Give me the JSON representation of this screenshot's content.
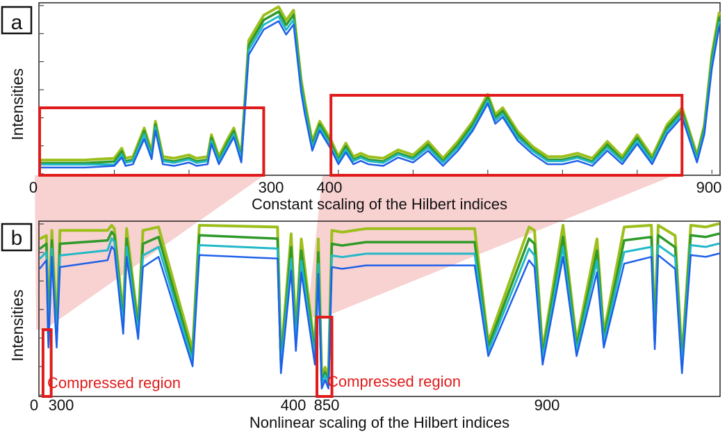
{
  "panels": [
    {
      "letter": "a",
      "ylabel": "Intensities",
      "xlabel": "Constant scaling of the Hilbert indices",
      "tick_labels": [
        "0",
        "300",
        "400",
        "900"
      ],
      "annotations": []
    },
    {
      "letter": "b",
      "ylabel": "Intensities",
      "xlabel": "Nonlinear scaling of the Hilbert indices",
      "tick_labels": [
        "0",
        "300",
        "400",
        "850",
        "900"
      ],
      "annotations": [
        "Compressed region",
        "Compressed region"
      ]
    }
  ],
  "colors": {
    "series": [
      "#9cbf1c",
      "#2f9a2a",
      "#22b8c8",
      "#1e5fe8"
    ],
    "highlight": "#e01b1b",
    "projection": "#f7c9c9",
    "frame": "#222222"
  },
  "chart_data": [
    {
      "type": "line",
      "title": "",
      "xlabel": "Constant scaling of the Hilbert indices",
      "ylabel": "Intensities",
      "xlim": [
        0,
        910
      ],
      "ylim": [
        0,
        1
      ],
      "grid": false,
      "series_count": 4,
      "highlight_ranges": [
        [
          0,
          300
        ],
        [
          390,
          860
        ]
      ],
      "x": [
        0,
        60,
        100,
        110,
        115,
        125,
        140,
        150,
        155,
        165,
        180,
        190,
        200,
        210,
        225,
        230,
        240,
        250,
        260,
        270,
        280,
        300,
        320,
        330,
        340,
        350,
        355,
        365,
        375,
        390,
        400,
        410,
        420,
        430,
        440,
        460,
        480,
        500,
        520,
        540,
        560,
        580,
        600,
        610,
        620,
        640,
        660,
        680,
        700,
        720,
        740,
        760,
        780,
        800,
        820,
        840,
        860,
        880,
        890,
        900,
        910
      ],
      "series": [
        {
          "values": [
            0.07,
            0.07,
            0.08,
            0.14,
            0.08,
            0.09,
            0.26,
            0.12,
            0.3,
            0.09,
            0.08,
            0.09,
            0.1,
            0.08,
            0.09,
            0.22,
            0.09,
            0.18,
            0.26,
            0.1,
            0.78,
            0.93,
            0.98,
            0.9,
            0.96,
            0.55,
            0.42,
            0.18,
            0.3,
            0.19,
            0.09,
            0.17,
            0.09,
            0.11,
            0.09,
            0.08,
            0.13,
            0.1,
            0.18,
            0.08,
            0.18,
            0.3,
            0.46,
            0.34,
            0.38,
            0.24,
            0.15,
            0.09,
            0.09,
            0.11,
            0.08,
            0.18,
            0.09,
            0.22,
            0.09,
            0.28,
            0.38,
            0.1,
            0.28,
            0.7,
            0.95
          ]
        },
        {
          "values": [
            0.06,
            0.06,
            0.07,
            0.13,
            0.07,
            0.08,
            0.25,
            0.11,
            0.29,
            0.08,
            0.07,
            0.08,
            0.09,
            0.07,
            0.08,
            0.21,
            0.08,
            0.17,
            0.25,
            0.09,
            0.76,
            0.91,
            0.96,
            0.88,
            0.94,
            0.53,
            0.4,
            0.17,
            0.29,
            0.18,
            0.08,
            0.16,
            0.08,
            0.1,
            0.08,
            0.07,
            0.12,
            0.09,
            0.17,
            0.07,
            0.17,
            0.29,
            0.45,
            0.33,
            0.37,
            0.23,
            0.14,
            0.08,
            0.08,
            0.1,
            0.07,
            0.17,
            0.08,
            0.21,
            0.08,
            0.27,
            0.37,
            0.09,
            0.27,
            0.68,
            0.93
          ]
        },
        {
          "values": [
            0.06,
            0.06,
            0.06,
            0.12,
            0.07,
            0.08,
            0.24,
            0.11,
            0.28,
            0.08,
            0.07,
            0.08,
            0.09,
            0.07,
            0.08,
            0.2,
            0.08,
            0.16,
            0.24,
            0.09,
            0.74,
            0.89,
            0.94,
            0.86,
            0.92,
            0.52,
            0.39,
            0.16,
            0.28,
            0.17,
            0.08,
            0.15,
            0.08,
            0.1,
            0.08,
            0.07,
            0.12,
            0.09,
            0.16,
            0.07,
            0.16,
            0.28,
            0.44,
            0.32,
            0.36,
            0.22,
            0.14,
            0.08,
            0.08,
            0.1,
            0.07,
            0.16,
            0.08,
            0.2,
            0.08,
            0.26,
            0.36,
            0.09,
            0.26,
            0.66,
            0.91
          ]
        },
        {
          "values": [
            0.05,
            0.05,
            0.06,
            0.11,
            0.06,
            0.07,
            0.22,
            0.1,
            0.27,
            0.07,
            0.06,
            0.07,
            0.08,
            0.06,
            0.07,
            0.19,
            0.07,
            0.15,
            0.23,
            0.08,
            0.72,
            0.87,
            0.92,
            0.84,
            0.9,
            0.5,
            0.37,
            0.15,
            0.27,
            0.16,
            0.07,
            0.14,
            0.07,
            0.09,
            0.07,
            0.06,
            0.11,
            0.08,
            0.15,
            0.06,
            0.15,
            0.27,
            0.43,
            0.31,
            0.35,
            0.21,
            0.13,
            0.07,
            0.07,
            0.09,
            0.06,
            0.15,
            0.07,
            0.19,
            0.07,
            0.25,
            0.35,
            0.08,
            0.25,
            0.64,
            0.89
          ]
        }
      ]
    },
    {
      "type": "line",
      "title": "",
      "xlabel": "Nonlinear scaling of the Hilbert indices",
      "ylabel": "Intensities",
      "xlim": [
        0,
        100
      ],
      "ylim": [
        0,
        1
      ],
      "grid": false,
      "series_count": 4,
      "highlight_ranges": [
        [
          0.5,
          1.7
        ],
        [
          40.8,
          43.0
        ]
      ],
      "x": [
        0,
        1,
        1.3,
        1.8,
        2.5,
        3,
        10,
        10.6,
        11,
        12.3,
        12.8,
        14.5,
        15.2,
        17.5,
        22.5,
        23.5,
        35,
        35.5,
        37,
        37.7,
        38.5,
        40.5,
        41,
        41.5,
        42,
        42.5,
        43,
        44.5,
        48,
        64,
        66,
        72,
        72.8,
        74,
        77,
        79,
        82,
        83,
        86,
        90,
        90.5,
        91,
        93.5,
        94.5,
        95.8,
        98,
        100
      ],
      "series": [
        {
          "values": [
            0.9,
            0.92,
            0.35,
            0.95,
            0.35,
            0.95,
            0.95,
            0.98,
            0.96,
            0.45,
            0.96,
            0.4,
            0.95,
            0.97,
            0.25,
            0.98,
            0.97,
            0.2,
            0.93,
            0.35,
            0.9,
            0.25,
            0.9,
            0.1,
            0.15,
            0.1,
            0.95,
            0.94,
            0.96,
            0.96,
            0.3,
            0.97,
            0.95,
            0.25,
            0.98,
            0.3,
            0.9,
            0.35,
            0.97,
            0.98,
            0.35,
            0.98,
            0.92,
            0.2,
            0.98,
            0.97,
            0.99
          ]
        },
        {
          "values": [
            0.85,
            0.88,
            0.33,
            0.9,
            0.33,
            0.88,
            0.9,
            0.95,
            0.93,
            0.42,
            0.91,
            0.38,
            0.88,
            0.92,
            0.22,
            0.93,
            0.91,
            0.18,
            0.86,
            0.32,
            0.84,
            0.23,
            0.83,
            0.08,
            0.13,
            0.08,
            0.88,
            0.87,
            0.89,
            0.89,
            0.28,
            0.91,
            0.88,
            0.23,
            0.92,
            0.28,
            0.84,
            0.33,
            0.9,
            0.92,
            0.32,
            0.93,
            0.86,
            0.18,
            0.93,
            0.92,
            0.94
          ]
        },
        {
          "values": [
            0.8,
            0.84,
            0.31,
            0.86,
            0.31,
            0.82,
            0.85,
            0.92,
            0.9,
            0.4,
            0.87,
            0.36,
            0.82,
            0.87,
            0.2,
            0.88,
            0.86,
            0.16,
            0.8,
            0.3,
            0.79,
            0.21,
            0.77,
            0.07,
            0.12,
            0.07,
            0.82,
            0.81,
            0.83,
            0.83,
            0.26,
            0.86,
            0.82,
            0.21,
            0.87,
            0.26,
            0.79,
            0.31,
            0.84,
            0.87,
            0.3,
            0.88,
            0.81,
            0.16,
            0.88,
            0.87,
            0.89
          ]
        },
        {
          "values": [
            0.75,
            0.8,
            0.29,
            0.82,
            0.29,
            0.76,
            0.8,
            0.88,
            0.86,
            0.37,
            0.82,
            0.34,
            0.76,
            0.82,
            0.18,
            0.83,
            0.81,
            0.14,
            0.74,
            0.27,
            0.73,
            0.19,
            0.72,
            0.05,
            0.1,
            0.05,
            0.76,
            0.75,
            0.77,
            0.77,
            0.24,
            0.8,
            0.76,
            0.19,
            0.82,
            0.24,
            0.73,
            0.29,
            0.78,
            0.82,
            0.28,
            0.83,
            0.75,
            0.14,
            0.83,
            0.82,
            0.84
          ]
        }
      ]
    }
  ]
}
